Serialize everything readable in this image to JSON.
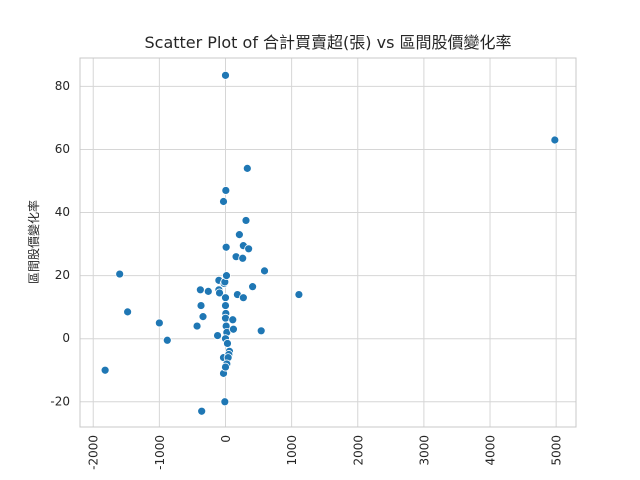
{
  "chart_data": {
    "type": "scatter",
    "title": "Scatter Plot of 合計買賣超(張) vs 區間股價變化率",
    "xlabel": "",
    "ylabel": "區間股價變化率",
    "xlim": [
      -2200,
      5300
    ],
    "ylim": [
      -28,
      89
    ],
    "xticks": [
      -2000,
      -1000,
      0,
      1000,
      2000,
      3000,
      4000,
      5000
    ],
    "yticks": [
      -20,
      0,
      20,
      40,
      60,
      80
    ],
    "grid": true,
    "color": "#1f77b4",
    "points": [
      {
        "x": -1820,
        "y": -10
      },
      {
        "x": -1600,
        "y": 20.5
      },
      {
        "x": -1480,
        "y": 8.5
      },
      {
        "x": -1000,
        "y": 5
      },
      {
        "x": -880,
        "y": -0.5
      },
      {
        "x": -430,
        "y": 4
      },
      {
        "x": -380,
        "y": 15.5
      },
      {
        "x": -370,
        "y": 10.5
      },
      {
        "x": -340,
        "y": 7
      },
      {
        "x": -360,
        "y": -23
      },
      {
        "x": -260,
        "y": 15
      },
      {
        "x": -120,
        "y": 1
      },
      {
        "x": -100,
        "y": 18.5
      },
      {
        "x": -100,
        "y": 15.5
      },
      {
        "x": -90,
        "y": 14.5
      },
      {
        "x": -30,
        "y": 43.5
      },
      {
        "x": -30,
        "y": -6
      },
      {
        "x": -30,
        "y": -11
      },
      {
        "x": -20,
        "y": 17.5
      },
      {
        "x": -10,
        "y": 18
      },
      {
        "x": -10,
        "y": -20
      },
      {
        "x": 0,
        "y": 83.5
      },
      {
        "x": 5,
        "y": 47
      },
      {
        "x": 10,
        "y": 29
      },
      {
        "x": 15,
        "y": 20
      },
      {
        "x": 0,
        "y": 13
      },
      {
        "x": 0,
        "y": 10.5
      },
      {
        "x": 5,
        "y": 8
      },
      {
        "x": 0,
        "y": 6.5
      },
      {
        "x": 10,
        "y": 4
      },
      {
        "x": 20,
        "y": 2
      },
      {
        "x": 0,
        "y": 0
      },
      {
        "x": 30,
        "y": -1.5
      },
      {
        "x": 60,
        "y": -4
      },
      {
        "x": 50,
        "y": -5
      },
      {
        "x": 40,
        "y": -6
      },
      {
        "x": 20,
        "y": -8
      },
      {
        "x": 0,
        "y": -9
      },
      {
        "x": 110,
        "y": 6
      },
      {
        "x": 120,
        "y": 3
      },
      {
        "x": 160,
        "y": 26
      },
      {
        "x": 210,
        "y": 33
      },
      {
        "x": 260,
        "y": 25.5
      },
      {
        "x": 270,
        "y": 29.5
      },
      {
        "x": 310,
        "y": 37.5
      },
      {
        "x": 330,
        "y": 54
      },
      {
        "x": 350,
        "y": 28.5
      },
      {
        "x": 180,
        "y": 14
      },
      {
        "x": 270,
        "y": 13
      },
      {
        "x": 410,
        "y": 16.5
      },
      {
        "x": 540,
        "y": 2.5
      },
      {
        "x": 590,
        "y": 21.5
      },
      {
        "x": 1110,
        "y": 14
      },
      {
        "x": 4980,
        "y": 63
      }
    ]
  }
}
